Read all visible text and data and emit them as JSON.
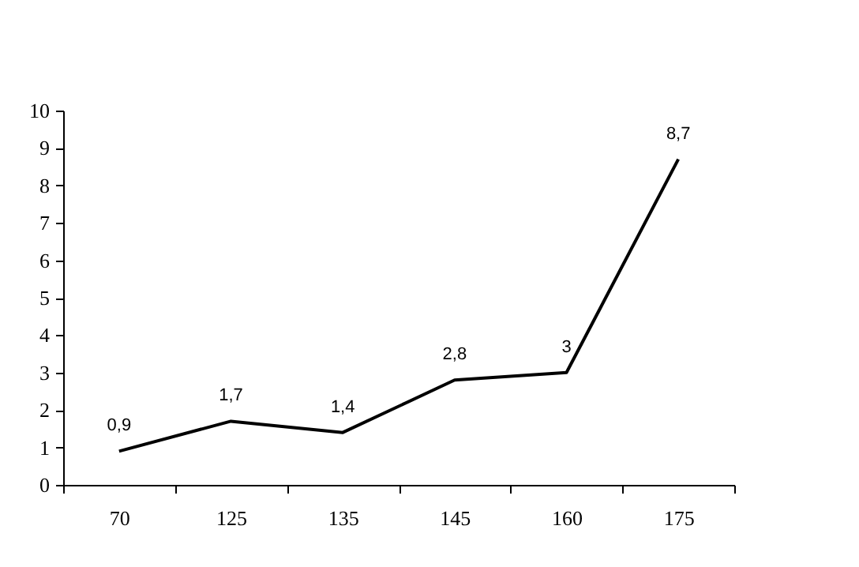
{
  "chart_data": {
    "type": "line",
    "categories": [
      "70",
      "125",
      "135",
      "145",
      "160",
      "175"
    ],
    "series": [
      {
        "color": "#000000",
        "values": [
          0.9,
          1.7,
          1.4,
          2.8,
          3,
          8.7
        ],
        "value_labels": [
          "0,9",
          "1,7",
          "1,4",
          "2,8",
          "3",
          "8,7"
        ]
      }
    ],
    "ylim": [
      0,
      10
    ],
    "yticks": [
      0,
      1,
      2,
      3,
      4,
      5,
      6,
      7,
      8,
      9,
      10
    ],
    "grid": false,
    "marker": "none",
    "line_style": "solid"
  }
}
